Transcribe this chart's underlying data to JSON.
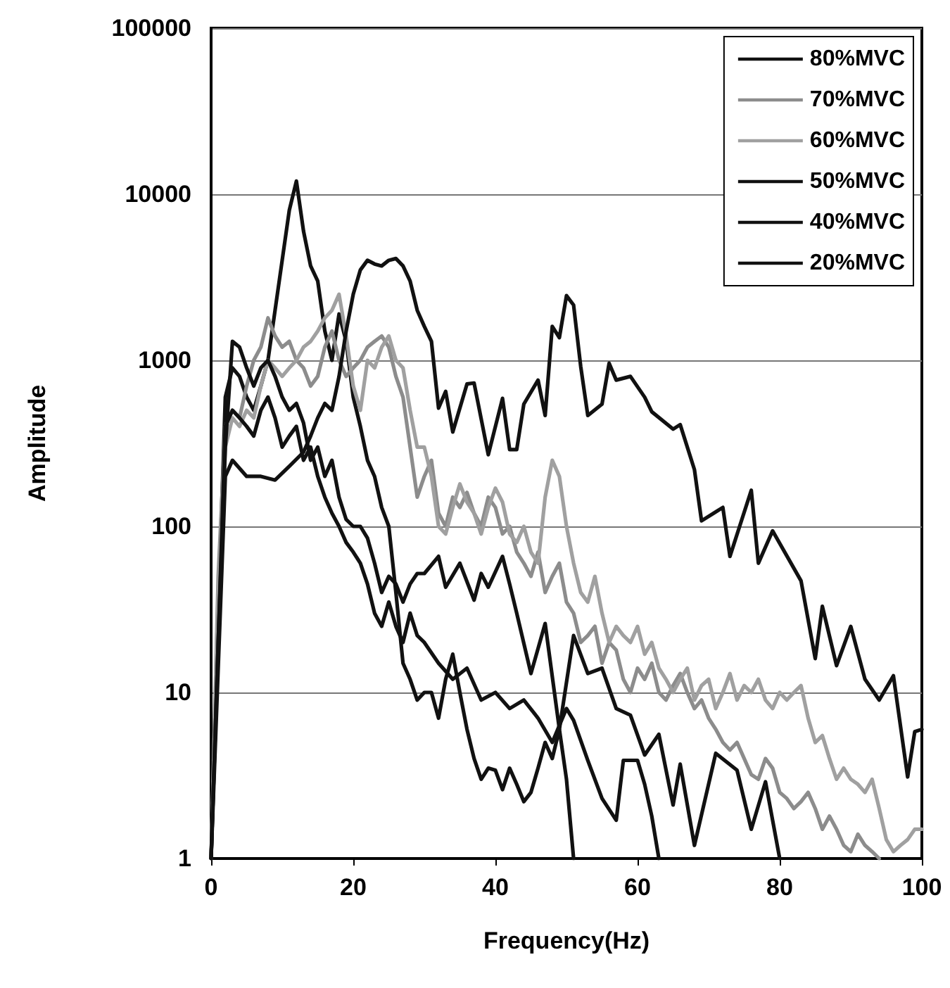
{
  "chart_data": {
    "type": "line",
    "xlabel": "Frequency(Hz)",
    "ylabel": "Amplitude",
    "log": "y",
    "grid": "y",
    "legend": "top right",
    "marker": "none",
    "line_style": "solid",
    "xlim": [
      0,
      100
    ],
    "xticks": [
      0,
      20,
      40,
      60,
      80,
      100
    ],
    "ylim": [
      1,
      100000
    ],
    "yticks": [
      1,
      10,
      100,
      1000,
      10000,
      100000
    ],
    "series": [
      {
        "name": "80%MVC",
        "color": "#111111",
        "x": [
          0,
          1,
          2,
          3,
          4,
          5,
          6,
          7,
          8,
          9,
          10,
          11,
          12,
          13,
          14,
          15,
          16,
          17,
          18,
          19,
          20,
          21,
          22,
          23,
          24,
          25,
          26,
          27,
          28,
          29,
          30,
          31,
          32,
          33,
          34,
          35,
          36,
          37,
          38,
          39,
          40,
          41,
          42,
          43,
          44,
          45,
          46,
          47,
          48,
          49,
          50,
          51
        ],
        "values": [
          1,
          30,
          600,
          900,
          800,
          600,
          500,
          700,
          1000,
          2000,
          4000,
          8000,
          12000,
          6000,
          3700,
          3000,
          1500,
          1000,
          1900,
          1300,
          600,
          400,
          250,
          200,
          130,
          100,
          40,
          15,
          12,
          9,
          10,
          10,
          7,
          12,
          17,
          10,
          6,
          4,
          3,
          3.5,
          3.4,
          2.6,
          3.5,
          2.8,
          2.2,
          2.5,
          3.5,
          5,
          4,
          6,
          3,
          1
        ]
      },
      {
        "name": "70%MVC",
        "color": "#8c8c8c",
        "x": [
          0,
          1,
          2,
          3,
          4,
          5,
          6,
          7,
          8,
          9,
          10,
          11,
          12,
          13,
          14,
          15,
          16,
          17,
          18,
          19,
          20,
          21,
          22,
          23,
          24,
          25,
          26,
          27,
          28,
          29,
          30,
          31,
          32,
          33,
          34,
          35,
          36,
          37,
          38,
          39,
          40,
          41,
          42,
          43,
          44,
          45,
          46,
          47,
          48,
          49,
          50,
          51,
          52,
          53,
          54,
          55,
          56,
          57,
          58,
          59,
          60,
          61,
          62,
          63,
          64,
          65,
          66,
          67,
          68,
          69,
          70,
          71,
          72,
          73,
          74,
          75,
          76,
          77,
          78,
          79,
          80,
          81,
          82,
          83,
          84,
          85,
          86,
          87,
          88,
          89,
          90,
          91,
          92,
          93,
          94
        ],
        "values": [
          1,
          50,
          400,
          500,
          450,
          700,
          1000,
          1200,
          1800,
          1400,
          1200,
          1300,
          1000,
          900,
          700,
          800,
          1200,
          1500,
          1000,
          800,
          900,
          1000,
          1200,
          1300,
          1400,
          1200,
          800,
          600,
          300,
          150,
          200,
          250,
          120,
          100,
          150,
          130,
          160,
          120,
          100,
          150,
          130,
          90,
          100,
          70,
          60,
          50,
          70,
          40,
          50,
          60,
          35,
          30,
          20,
          22,
          25,
          15,
          20,
          18,
          12,
          10,
          14,
          12,
          15,
          10,
          9,
          11,
          13,
          10,
          8,
          9,
          7,
          6,
          5,
          4.5,
          5,
          4,
          3.2,
          3,
          4,
          3.5,
          2.5,
          2.3,
          2,
          2.2,
          2.5,
          2,
          1.5,
          1.8,
          1.5,
          1.2,
          1.1,
          1.4,
          1.2,
          1.1,
          1
        ]
      },
      {
        "name": "60%MVC",
        "color": "#a0a0a0",
        "x": [
          0,
          1,
          2,
          3,
          4,
          5,
          6,
          7,
          8,
          9,
          10,
          11,
          12,
          13,
          14,
          15,
          16,
          17,
          18,
          19,
          20,
          21,
          22,
          23,
          24,
          25,
          26,
          27,
          28,
          29,
          30,
          31,
          32,
          33,
          34,
          35,
          36,
          37,
          38,
          39,
          40,
          41,
          42,
          43,
          44,
          45,
          46,
          47,
          48,
          49,
          50,
          51,
          52,
          53,
          54,
          55,
          56,
          57,
          58,
          59,
          60,
          61,
          62,
          63,
          64,
          65,
          66,
          67,
          68,
          69,
          70,
          71,
          72,
          73,
          74,
          75,
          76,
          77,
          78,
          79,
          80,
          81,
          82,
          83,
          84,
          85,
          86,
          87,
          88,
          89,
          90,
          91,
          92,
          93,
          94,
          95,
          96,
          97,
          98,
          99,
          100
        ],
        "values": [
          1,
          40,
          300,
          450,
          400,
          500,
          450,
          700,
          1000,
          900,
          800,
          900,
          1000,
          1200,
          1300,
          1500,
          1800,
          2000,
          2500,
          1400,
          700,
          500,
          1000,
          900,
          1200,
          1400,
          1000,
          900,
          500,
          300,
          300,
          200,
          100,
          90,
          130,
          180,
          140,
          120,
          90,
          130,
          170,
          140,
          90,
          80,
          100,
          70,
          60,
          150,
          250,
          200,
          100,
          60,
          40,
          35,
          50,
          30,
          20,
          25,
          22,
          20,
          25,
          17,
          20,
          14,
          12,
          10,
          12,
          14,
          9,
          11,
          12,
          8,
          10,
          13,
          9,
          11,
          10,
          12,
          9,
          8,
          10,
          9,
          10,
          11,
          7,
          5,
          5.5,
          4,
          3,
          3.5,
          3,
          2.8,
          2.5,
          3,
          2,
          1.3,
          1.1,
          1.2,
          1.3,
          1.5,
          1.5
        ]
      },
      {
        "name": "50%MVC",
        "color": "#111111",
        "x": [
          0,
          1,
          2,
          3,
          4,
          5,
          6,
          7,
          8,
          9,
          10,
          11,
          12,
          13,
          14,
          15,
          16,
          17,
          18,
          19,
          20,
          21,
          22,
          23,
          24,
          25,
          26,
          27,
          28,
          29,
          30,
          32,
          33,
          35,
          37,
          38,
          39,
          41,
          42,
          43,
          45,
          47,
          49,
          51,
          53,
          55,
          57,
          59,
          61,
          63,
          65,
          66,
          68,
          71,
          74,
          76,
          78,
          80
        ],
        "values": [
          1,
          20,
          300,
          1300,
          1200,
          900,
          700,
          900,
          1000,
          800,
          600,
          500,
          550,
          420,
          250,
          300,
          200,
          250,
          150,
          110,
          100,
          100,
          85,
          60,
          40,
          50,
          45,
          35,
          45,
          52,
          52,
          66,
          43,
          60,
          36,
          52,
          43,
          66,
          45,
          30,
          13,
          26,
          6,
          22,
          13,
          14,
          8,
          7.3,
          4.2,
          5.6,
          2.1,
          3.7,
          1.2,
          4.3,
          3.4,
          1.5,
          2.9,
          1
        ]
      },
      {
        "name": "40%MVC",
        "color": "#111111",
        "x": [
          0,
          1,
          2,
          3,
          4,
          5,
          6,
          7,
          8,
          9,
          10,
          11,
          12,
          13,
          14,
          15,
          16,
          17,
          18,
          19,
          20,
          21,
          22,
          23,
          24,
          25,
          26,
          27,
          28,
          29,
          30,
          32,
          34,
          36,
          38,
          40,
          42,
          44,
          46,
          48,
          50,
          51,
          53,
          55,
          57,
          58,
          60,
          61,
          62,
          63
        ],
        "values": [
          1,
          20,
          400,
          500,
          450,
          400,
          350,
          500,
          600,
          450,
          300,
          350,
          400,
          250,
          300,
          200,
          150,
          120,
          100,
          80,
          70,
          60,
          45,
          30,
          25,
          35,
          25,
          20,
          30,
          22,
          20,
          15,
          12,
          14,
          9,
          10,
          8,
          9,
          7,
          5,
          8,
          6.8,
          3.9,
          2.3,
          1.7,
          3.9,
          3.9,
          2.8,
          1.8,
          1
        ]
      },
      {
        "name": "20%MVC",
        "color": "#111111",
        "x": [
          0,
          2,
          3,
          5,
          7,
          9,
          11,
          13,
          14,
          15,
          16,
          17,
          18,
          19,
          20,
          21,
          22,
          23,
          24,
          25,
          26,
          27,
          28,
          29,
          30,
          31,
          32,
          33,
          34,
          36,
          37,
          39,
          41,
          42,
          43,
          44,
          46,
          47,
          48,
          49,
          50,
          51,
          52,
          53,
          55,
          56,
          57,
          59,
          61,
          62,
          65,
          66,
          68,
          69,
          72,
          73,
          76,
          77,
          79,
          83,
          85,
          86,
          88,
          90,
          92,
          94,
          96,
          98,
          99,
          100
        ],
        "values": [
          1,
          200,
          250,
          200,
          200,
          190,
          230,
          280,
          350,
          450,
          550,
          500,
          800,
          1500,
          2500,
          3500,
          4000,
          3800,
          3700,
          4000,
          4100,
          3700,
          3000,
          2000,
          1600,
          1300,
          515,
          650,
          370,
          720,
          730,
          270,
          590,
          290,
          290,
          545,
          760,
          465,
          1600,
          1370,
          2450,
          2150,
          920,
          465,
          545,
          960,
          760,
          800,
          600,
          490,
          385,
          410,
          220,
          108,
          130,
          66,
          165,
          60,
          94,
          47,
          16,
          33,
          14.5,
          25,
          12,
          9,
          12.6,
          3.1,
          5.8,
          6
        ]
      }
    ]
  }
}
